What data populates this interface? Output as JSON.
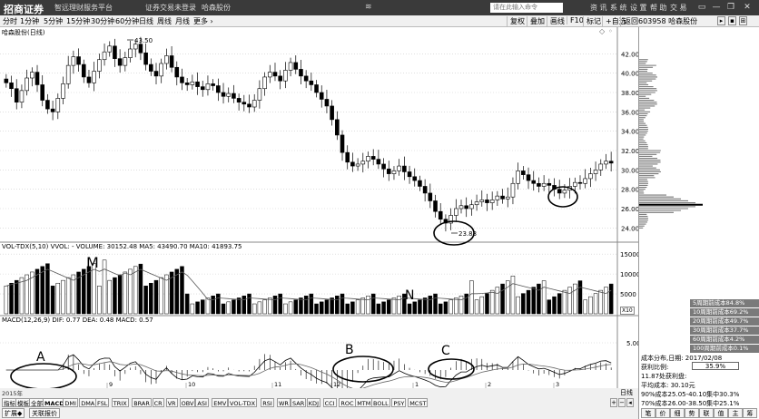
{
  "titlebar": {
    "logo": "招商证券",
    "platform": "智远理财服务平台",
    "menu": [
      "证券交易未登录",
      "哈森股份"
    ],
    "search_placeholder": "请在此输入命令",
    "right_menu": [
      "资 讯",
      "系 统",
      "设 置",
      "帮 助",
      "交 易"
    ],
    "window_buttons": [
      "▭",
      "—",
      "❐",
      "✕"
    ]
  },
  "toolbar": {
    "period_tabs": [
      "分时",
      "1分钟",
      "5分钟",
      "15分钟",
      "30分钟",
      "60分钟",
      "日线",
      "周线",
      "月线",
      "更多 ›"
    ],
    "right_buttons": [
      "复权",
      "叠加",
      "画线",
      "F10",
      "标记",
      "+自选",
      "返回"
    ],
    "stock_code_label": "603958 哈森股份"
  },
  "price_panel": {
    "title": "哈森股份(日线)",
    "high_label": "43.50",
    "low_label": "23.83",
    "axis_labels": [
      "42.00",
      "40.00",
      "38.00",
      "36.00",
      "34.00",
      "32.00",
      "30.00",
      "28.00",
      "26.00",
      "24.00"
    ]
  },
  "volume_panel": {
    "title": "VOL-TDX(5,10) VVOL: ‑ VOLUME: 30152.48 MA5: 43490.70 MA10: 41893.75",
    "axis_labels": [
      "15000",
      "10000",
      "5000"
    ],
    "unit": "X10"
  },
  "macd_panel": {
    "title": "MACD(12,26,9) DIF: 0.77 DEA: 0.48 MACD: 0.57",
    "axis_labels": [
      "5.00"
    ]
  },
  "annotations": [
    "M",
    "N",
    "A",
    "B",
    "C"
  ],
  "x_axis": {
    "labels": [
      "2015年",
      "9",
      "10",
      "11",
      "12",
      "1",
      "2",
      "3"
    ],
    "period": "日线"
  },
  "indicator_tabs": [
    "指标",
    "模板",
    "全部",
    "MACD",
    "DMI",
    "DMA",
    "FSL",
    "TRIX",
    "BRAR",
    "CR",
    "VR",
    "OBV",
    "ASI",
    "EMV",
    "VOL-TDX",
    "RSI",
    "WR",
    "SAR",
    "KDJ",
    "CCI",
    "ROC",
    "MTM",
    "BOLL",
    "PSY",
    "MCST"
  ],
  "bottom_tabs": [
    "扩展◆",
    "关联报价"
  ],
  "cost_legend": [
    "5周期前成本84.8%",
    "10周期前成本69.2%",
    "20周期前成本49.7%",
    "30周期前成本37.7%",
    "60周期前成本4.2%",
    "100周期前成本0.1%"
  ],
  "cost_info": {
    "date_line": "成本分布,日期: 2017/02/08",
    "profit_label": "获利比例:",
    "profit_value": "35.9%",
    "profit_text": "11.87处获利盘:",
    "avg_cost": "平均成本: 30.10元",
    "range90": "90%成本25.05-40.10集中30.3%",
    "range70": "70%成本26.00-38.50集中25.1%"
  },
  "side_buttons": [
    "笔",
    "价",
    "细",
    "势",
    "联",
    "值",
    "主",
    "筹"
  ],
  "scroll_buttons": [
    "+",
    "−",
    "◂"
  ],
  "colors": {
    "up": "#ffffff",
    "down": "#000000",
    "macd_line": "#000000",
    "ma_line": "#555555",
    "cost_dist": "#777777"
  },
  "chart_data": {
    "type": "candlestick",
    "categories": [
      "2015年",
      "9",
      "10",
      "11",
      "12",
      "1",
      "2",
      "3"
    ],
    "price_marks": {
      "high": 43.5,
      "low": 23.83
    },
    "ylim_price": [
      23,
      44
    ],
    "volume_max": 15000,
    "close": [
      39.0,
      38.4,
      37.0,
      38.2,
      39.5,
      40.1,
      38.8,
      37.2,
      36.3,
      36.0,
      37.4,
      38.9,
      40.8,
      41.7,
      40.9,
      39.6,
      39.0,
      40.2,
      41.4,
      42.2,
      42.8,
      41.5,
      40.8,
      41.6,
      42.5,
      43.0,
      42.1,
      40.9,
      40.2,
      39.7,
      41.0,
      41.8,
      40.6,
      39.6,
      39.0,
      38.8,
      39.1,
      38.6,
      38.3,
      38.9,
      38.7,
      38.0,
      37.6,
      37.9,
      37.4,
      37.0,
      36.8,
      36.5,
      37.2,
      38.4,
      39.6,
      40.1,
      39.7,
      39.2,
      40.3,
      41.1,
      40.4,
      39.7,
      39.2,
      38.8,
      38.0,
      37.3,
      36.6,
      35.2,
      33.6,
      31.8,
      30.8,
      30.4,
      30.6,
      30.9,
      31.4,
      31.1,
      30.6,
      30.1,
      29.6,
      29.9,
      30.4,
      29.8,
      29.3,
      28.9,
      28.3,
      27.6,
      26.8,
      25.7,
      24.9,
      24.5,
      25.3,
      26.0,
      26.3,
      26.0,
      26.4,
      26.7,
      26.9,
      26.6,
      26.9,
      27.3,
      27.0,
      27.2,
      28.6,
      29.9,
      29.5,
      28.9,
      28.6,
      28.3,
      28.6,
      28.4,
      28.0,
      27.6,
      27.9,
      28.3,
      28.7,
      28.6,
      29.1,
      29.6,
      30.0,
      30.6,
      30.9,
      30.7
    ]
  }
}
